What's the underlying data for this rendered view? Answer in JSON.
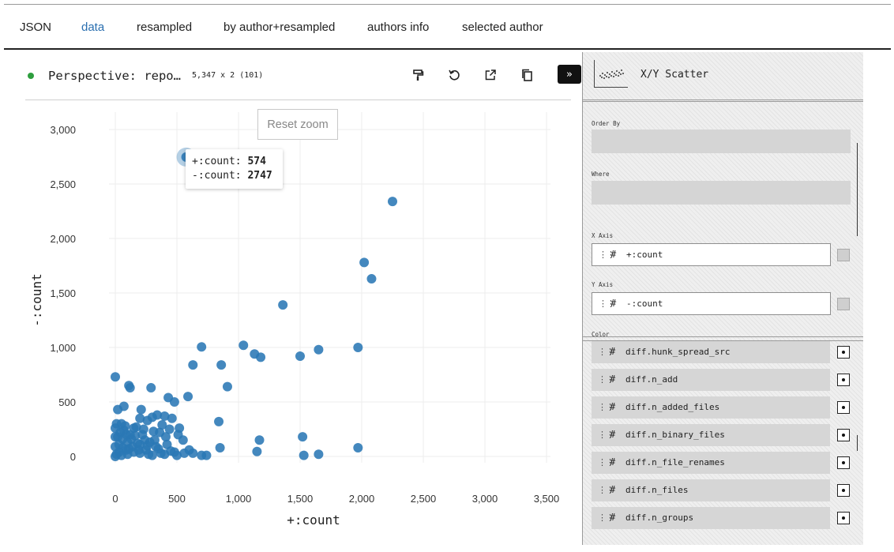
{
  "tabs": [
    "JSON",
    "data",
    "resampled",
    "by author+resampled",
    "authors info",
    "selected author"
  ],
  "active_tab": "data",
  "viewer": {
    "title": "Perspective: repo…",
    "row_count": "5,347 x 2 (101)",
    "reset_zoom": "Reset zoom",
    "expand_glyph": "»"
  },
  "tooltip": {
    "x_label": "+:count:",
    "x_value": "574",
    "y_label": "-:count:",
    "y_value": "2747"
  },
  "colors": {
    "point": "#2a78b5",
    "accent_tab": "#2a6fb0",
    "status": "#2e9e3e"
  },
  "chart_data": {
    "type": "scatter",
    "xlabel": "+:count",
    "ylabel": "-:count",
    "xlim": [
      0,
      3500
    ],
    "ylim": [
      0,
      3000
    ],
    "x_ticks": [
      "0",
      "500",
      "1,000",
      "1,500",
      "2,000",
      "2,500",
      "3,000",
      "3,500"
    ],
    "y_ticks": [
      "0",
      "500",
      "1,000",
      "1,500",
      "2,000",
      "2,500",
      "3,000"
    ],
    "grid": true,
    "points": [
      [
        574,
        2747
      ],
      [
        2250,
        2340
      ],
      [
        2020,
        1780
      ],
      [
        2080,
        1630
      ],
      [
        1360,
        1390
      ],
      [
        1040,
        1020
      ],
      [
        1130,
        940
      ],
      [
        1180,
        910
      ],
      [
        1500,
        920
      ],
      [
        1650,
        980
      ],
      [
        1970,
        1000
      ],
      [
        700,
        1005
      ],
      [
        630,
        840
      ],
      [
        860,
        840
      ],
      [
        910,
        640
      ],
      [
        590,
        550
      ],
      [
        840,
        320
      ],
      [
        1170,
        150
      ],
      [
        1520,
        180
      ],
      [
        850,
        80
      ],
      [
        1150,
        45
      ],
      [
        1970,
        80
      ],
      [
        1650,
        20
      ],
      [
        1530,
        10
      ],
      [
        700,
        10
      ],
      [
        740,
        10
      ],
      [
        630,
        30
      ],
      [
        0,
        730
      ],
      [
        110,
        650
      ],
      [
        120,
        630
      ],
      [
        290,
        630
      ],
      [
        430,
        540
      ],
      [
        480,
        500
      ],
      [
        20,
        430
      ],
      [
        210,
        430
      ],
      [
        70,
        460
      ],
      [
        340,
        380
      ],
      [
        400,
        370
      ],
      [
        460,
        350
      ],
      [
        520,
        260
      ],
      [
        380,
        290
      ],
      [
        260,
        330
      ],
      [
        300,
        360
      ],
      [
        200,
        350
      ],
      [
        150,
        260
      ],
      [
        230,
        250
      ],
      [
        550,
        150
      ],
      [
        360,
        220
      ],
      [
        410,
        180
      ],
      [
        320,
        150
      ],
      [
        280,
        130
      ],
      [
        200,
        110
      ],
      [
        140,
        90
      ],
      [
        90,
        60
      ],
      [
        60,
        80
      ],
      [
        30,
        40
      ],
      [
        10,
        20
      ],
      [
        0,
        0
      ],
      [
        50,
        10
      ],
      [
        100,
        20
      ],
      [
        150,
        40
      ],
      [
        200,
        30
      ],
      [
        250,
        60
      ],
      [
        300,
        10
      ],
      [
        350,
        70
      ],
      [
        400,
        20
      ],
      [
        450,
        50
      ],
      [
        500,
        10
      ],
      [
        20,
        180
      ],
      [
        40,
        220
      ],
      [
        60,
        160
      ],
      [
        80,
        280
      ],
      [
        100,
        130
      ],
      [
        120,
        200
      ],
      [
        160,
        190
      ],
      [
        180,
        120
      ],
      [
        240,
        150
      ],
      [
        10,
        300
      ],
      [
        30,
        110
      ],
      [
        70,
        240
      ],
      [
        130,
        160
      ],
      [
        170,
        270
      ],
      [
        220,
        200
      ],
      [
        260,
        100
      ],
      [
        330,
        90
      ],
      [
        370,
        30
      ],
      [
        420,
        110
      ],
      [
        480,
        40
      ],
      [
        560,
        30
      ],
      [
        600,
        60
      ],
      [
        0,
        90
      ],
      [
        0,
        180
      ],
      [
        0,
        260
      ],
      [
        50,
        300
      ],
      [
        90,
        200
      ],
      [
        110,
        70
      ],
      [
        190,
        60
      ],
      [
        270,
        20
      ],
      [
        310,
        230
      ],
      [
        440,
        250
      ],
      [
        510,
        200
      ]
    ]
  },
  "settings": {
    "plugin_name": "X/Y Scatter",
    "order_by_label": "Order By",
    "where_label": "Where",
    "x_axis_label": "X Axis",
    "y_axis_label": "Y Axis",
    "color_label": "Color",
    "x_axis_column": "+:count",
    "y_axis_column": "-:count",
    "type_glyph": "#",
    "columns": [
      "diff.hunk_spread_src",
      "diff.n_add",
      "diff.n_added_files",
      "diff.n_binary_files",
      "diff.n_file_renames",
      "diff.n_files",
      "diff.n_groups"
    ]
  }
}
